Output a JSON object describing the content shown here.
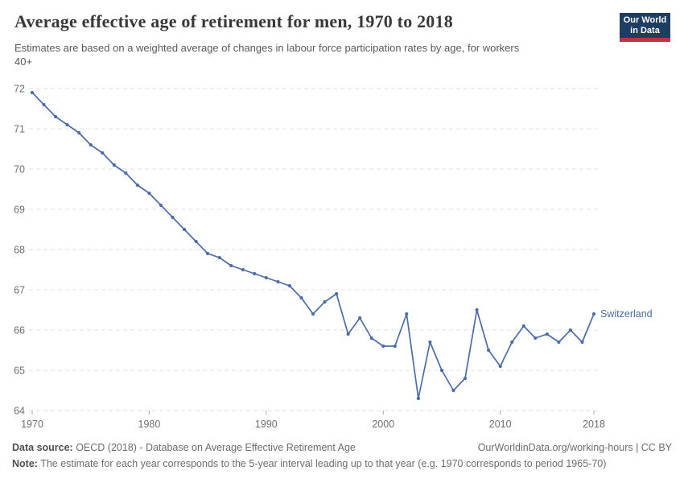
{
  "header": {
    "title": "Average effective age of retirement for men, 1970 to 2018",
    "subtitle_line1": "Estimates are based on a weighted average of changes in labour force participation rates by age, for workers",
    "subtitle_line2": "40+",
    "logo_line1": "Our World",
    "logo_line2": "in Data",
    "logo_bg": "#1d3d63",
    "logo_stripe": "#c0304a"
  },
  "chart_data": {
    "type": "line",
    "title": "Average effective age of retirement for men, 1970 to 2018",
    "xlabel": "",
    "ylabel": "",
    "xlim": [
      1970,
      2018
    ],
    "ylim": [
      64,
      72
    ],
    "xticks": [
      1970,
      1980,
      1990,
      2000,
      2010,
      2018
    ],
    "yticks": [
      64,
      65,
      66,
      67,
      68,
      69,
      70,
      71,
      72
    ],
    "grid": "horizontal-dashed",
    "legend": "end-of-line-label",
    "line_color": "#4c6da5",
    "axis_text_color": "#6e6e6e",
    "grid_color": "#e0e0e0",
    "years": [
      1970,
      1971,
      1972,
      1973,
      1974,
      1975,
      1976,
      1977,
      1978,
      1979,
      1980,
      1981,
      1982,
      1983,
      1984,
      1985,
      1986,
      1987,
      1988,
      1989,
      1990,
      1991,
      1992,
      1993,
      1994,
      1995,
      1996,
      1997,
      1998,
      1999,
      2000,
      2001,
      2002,
      2003,
      2004,
      2005,
      2006,
      2007,
      2008,
      2009,
      2010,
      2011,
      2012,
      2013,
      2014,
      2015,
      2016,
      2017,
      2018
    ],
    "series": [
      {
        "name": "Switzerland",
        "values": [
          71.9,
          71.6,
          71.3,
          71.1,
          70.9,
          70.6,
          70.4,
          70.1,
          69.9,
          69.6,
          69.4,
          69.1,
          68.8,
          68.5,
          68.2,
          67.9,
          67.8,
          67.6,
          67.5,
          67.4,
          67.3,
          67.2,
          67.1,
          66.8,
          66.4,
          66.7,
          66.9,
          65.9,
          66.3,
          65.8,
          65.6,
          65.6,
          66.4,
          64.3,
          65.7,
          65.0,
          64.5,
          64.8,
          66.5,
          65.5,
          65.1,
          65.7,
          66.1,
          65.8,
          65.9,
          65.7,
          66.0,
          65.7,
          66.4
        ]
      }
    ]
  },
  "footer": {
    "datasource_label": "Data source:",
    "datasource_text": " OECD (2018) - Database on Average Effective Retirement Age",
    "link": "OurWorldinData.org/working-hours | CC BY",
    "note_label": "Note:",
    "note_text": " The estimate for each year corresponds to the 5-year interval leading up to that year (e.g. 1970 corresponds to period 1965-70)"
  }
}
